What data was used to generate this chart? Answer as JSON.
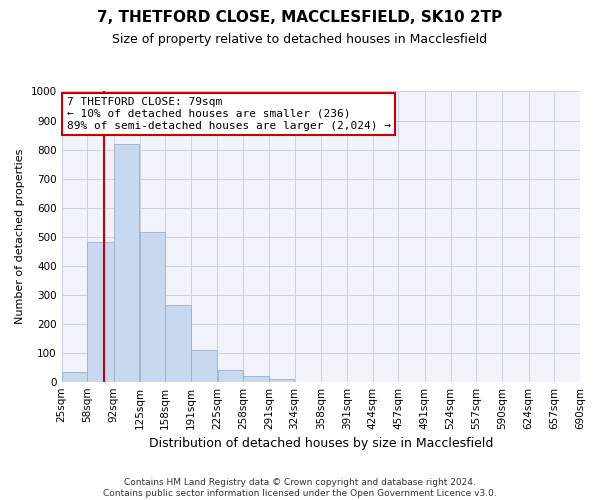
{
  "title1": "7, THETFORD CLOSE, MACCLESFIELD, SK10 2TP",
  "title2": "Size of property relative to detached houses in Macclesfield",
  "xlabel": "Distribution of detached houses by size in Macclesfield",
  "ylabel": "Number of detached properties",
  "annotation_title": "7 THETFORD CLOSE: 79sqm",
  "annotation_line1": "← 10% of detached houses are smaller (236)",
  "annotation_line2": "89% of semi-detached houses are larger (2,024) →",
  "footnote1": "Contains HM Land Registry data © Crown copyright and database right 2024.",
  "footnote2": "Contains public sector information licensed under the Open Government Licence v3.0.",
  "bins": [
    25,
    58,
    92,
    125,
    158,
    191,
    225,
    258,
    291,
    324,
    358,
    391,
    424,
    457,
    491,
    524,
    557,
    590,
    624,
    657,
    690
  ],
  "values": [
    35,
    480,
    820,
    515,
    265,
    110,
    40,
    20,
    10,
    0,
    0,
    0,
    0,
    0,
    0,
    0,
    0,
    0,
    0,
    0
  ],
  "bar_color": "#c8d8ee",
  "bar_edge_color": "#9ab0cc",
  "vline_value": 79,
  "vline_color": "#cc0000",
  "annotation_box_facecolor": "#ffffff",
  "annotation_box_edgecolor": "#cc0000",
  "grid_color": "#c8d0dc",
  "plot_bg_color": "#f0f4fa",
  "fig_bg_color": "#ffffff",
  "ylim": [
    0,
    1000
  ],
  "yticks": [
    0,
    100,
    200,
    300,
    400,
    500,
    600,
    700,
    800,
    900,
    1000
  ],
  "title1_fontsize": 11,
  "title2_fontsize": 9,
  "xlabel_fontsize": 9,
  "ylabel_fontsize": 8,
  "tick_fontsize": 7.5,
  "footnote_fontsize": 6.5
}
